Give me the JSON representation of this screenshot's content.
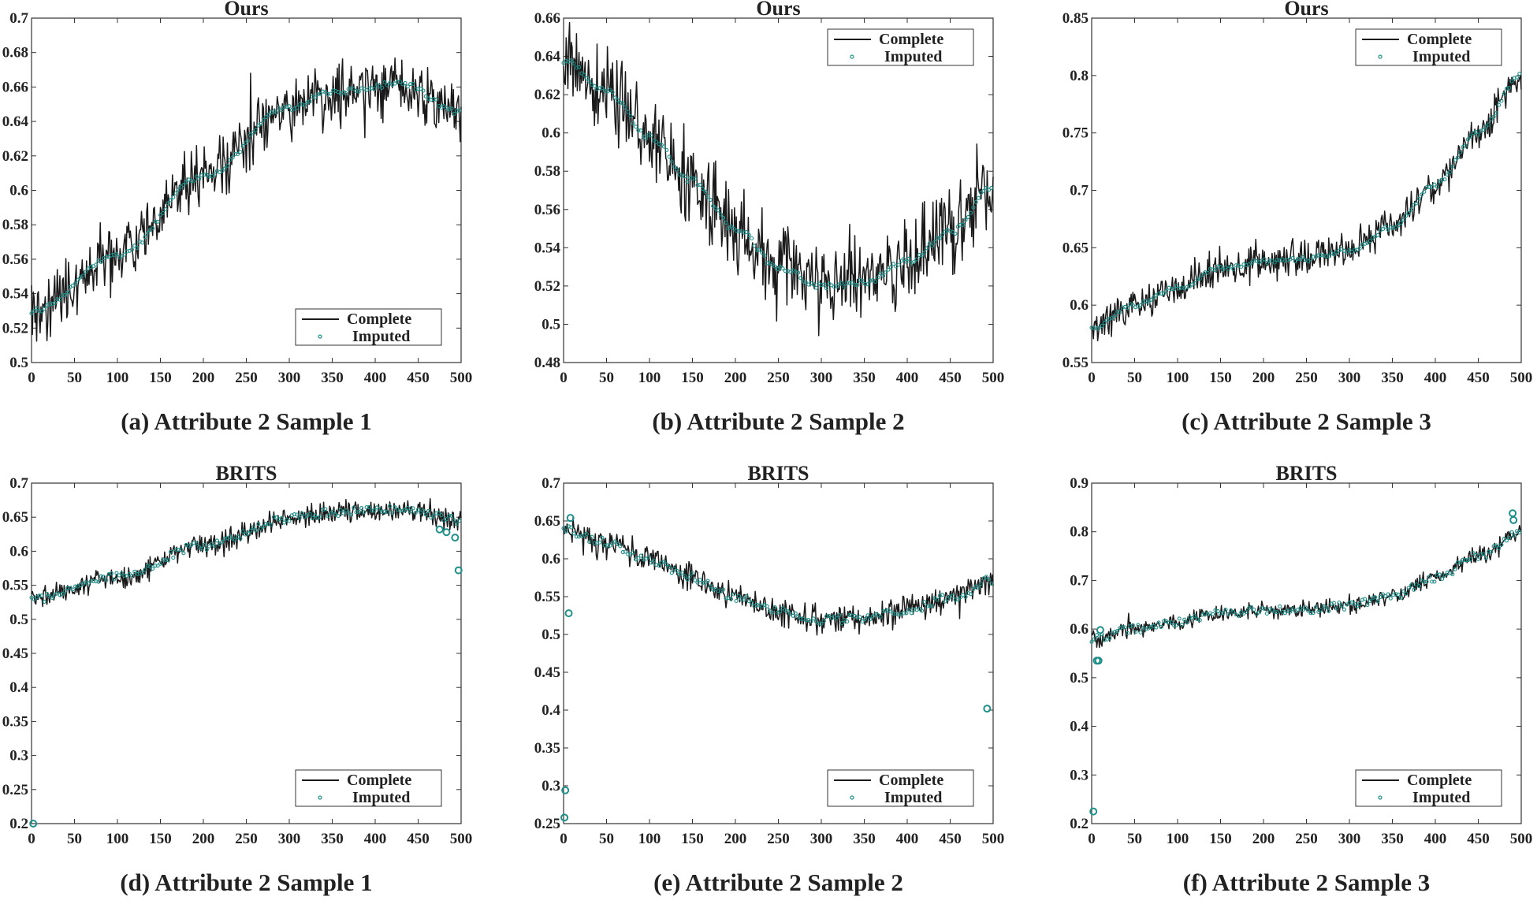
{
  "figure": {
    "series_names": [
      "Complete",
      "Imputed"
    ],
    "colors": {
      "complete": "#1a1a1a",
      "imputed": "#1f8f8a",
      "axes": "#333333"
    }
  },
  "chart_data": [
    {
      "id": "a",
      "type": "line",
      "title": "Ours",
      "caption": "(a) Attribute 2 Sample 1",
      "xlim": [
        0,
        500
      ],
      "ylim": [
        0.5,
        0.7
      ],
      "xticks": [
        0,
        50,
        100,
        150,
        200,
        250,
        300,
        350,
        400,
        450,
        500
      ],
      "yticks": [
        0.5,
        0.52,
        0.54,
        0.56,
        0.58,
        0.6,
        0.62,
        0.64,
        0.66,
        0.68,
        0.7
      ],
      "ytick_labels": [
        "0.5",
        "0.52",
        "0.54",
        "0.56",
        "0.58",
        "0.6",
        "0.62",
        "0.64",
        "0.66",
        "0.68",
        "0.7"
      ],
      "legend": {
        "position": "bottom-right",
        "labels": [
          "Complete",
          "Imputed"
        ]
      },
      "trend_knots": [
        [
          0,
          0.53
        ],
        [
          100,
          0.562
        ],
        [
          200,
          0.608
        ],
        [
          300,
          0.648
        ],
        [
          350,
          0.657
        ],
        [
          430,
          0.662
        ],
        [
          500,
          0.645
        ]
      ],
      "complete_noise": 0.013,
      "imputed_spread": 0.0015,
      "imputed_outliers": []
    },
    {
      "id": "b",
      "type": "line",
      "title": "Ours",
      "caption": "(b) Attribute 2 Sample 2",
      "xlim": [
        0,
        500
      ],
      "ylim": [
        0.48,
        0.66
      ],
      "xticks": [
        0,
        50,
        100,
        150,
        200,
        250,
        300,
        350,
        400,
        450,
        500
      ],
      "yticks": [
        0.48,
        0.5,
        0.52,
        0.54,
        0.56,
        0.58,
        0.6,
        0.62,
        0.64,
        0.66
      ],
      "ytick_labels": [
        "0.48",
        "0.5",
        "0.52",
        "0.54",
        "0.56",
        "0.58",
        "0.6",
        "0.62",
        "0.64",
        "0.66"
      ],
      "legend": {
        "position": "top-right",
        "labels": [
          "Complete",
          "Imputed"
        ]
      },
      "trend_knots": [
        [
          0,
          0.638
        ],
        [
          50,
          0.622
        ],
        [
          100,
          0.598
        ],
        [
          150,
          0.575
        ],
        [
          200,
          0.55
        ],
        [
          250,
          0.53
        ],
        [
          300,
          0.52
        ],
        [
          350,
          0.522
        ],
        [
          400,
          0.533
        ],
        [
          450,
          0.548
        ],
        [
          500,
          0.572
        ]
      ],
      "complete_noise": 0.015,
      "imputed_spread": 0.0015,
      "imputed_outliers": []
    },
    {
      "id": "c",
      "type": "line",
      "title": "Ours",
      "caption": "(c) Attribute 2 Sample 3",
      "xlim": [
        0,
        500
      ],
      "ylim": [
        0.55,
        0.85
      ],
      "xticks": [
        0,
        50,
        100,
        150,
        200,
        250,
        300,
        350,
        400,
        450,
        500
      ],
      "yticks": [
        0.55,
        0.6,
        0.65,
        0.7,
        0.75,
        0.8,
        0.85
      ],
      "ytick_labels": [
        "0.55",
        "0.6",
        "0.65",
        "0.7",
        "0.75",
        "0.8",
        "0.85"
      ],
      "legend": {
        "position": "top-right",
        "labels": [
          "Complete",
          "Imputed"
        ]
      },
      "trend_knots": [
        [
          0,
          0.58
        ],
        [
          50,
          0.6
        ],
        [
          100,
          0.615
        ],
        [
          150,
          0.632
        ],
        [
          200,
          0.638
        ],
        [
          250,
          0.64
        ],
        [
          300,
          0.648
        ],
        [
          350,
          0.668
        ],
        [
          400,
          0.705
        ],
        [
          450,
          0.75
        ],
        [
          500,
          0.8
        ]
      ],
      "complete_noise": 0.011,
      "imputed_spread": 0.002,
      "imputed_outliers": []
    },
    {
      "id": "d",
      "type": "line",
      "title": "BRITS",
      "caption": "(d) Attribute 2 Sample 1",
      "xlim": [
        0,
        500
      ],
      "ylim": [
        0.2,
        0.7
      ],
      "xticks": [
        0,
        50,
        100,
        150,
        200,
        250,
        300,
        350,
        400,
        450,
        500
      ],
      "yticks": [
        0.2,
        0.25,
        0.3,
        0.35,
        0.4,
        0.45,
        0.5,
        0.55,
        0.6,
        0.65,
        0.7
      ],
      "ytick_labels": [
        "0.2",
        "0.25",
        "0.3",
        "0.35",
        "0.4",
        "0.45",
        "0.5",
        "0.55",
        "0.6",
        "0.65",
        "0.7"
      ],
      "legend": {
        "position": "bottom-right",
        "labels": [
          "Complete",
          "Imputed"
        ]
      },
      "trend_knots": [
        [
          0,
          0.53
        ],
        [
          100,
          0.562
        ],
        [
          200,
          0.608
        ],
        [
          300,
          0.648
        ],
        [
          350,
          0.657
        ],
        [
          430,
          0.662
        ],
        [
          500,
          0.645
        ]
      ],
      "complete_noise": 0.011,
      "imputed_spread": 0.006,
      "imputed_outliers": [
        [
          2,
          0.2
        ],
        [
          475,
          0.632
        ],
        [
          483,
          0.628
        ],
        [
          493,
          0.62
        ],
        [
          497,
          0.572
        ]
      ]
    },
    {
      "id": "e",
      "type": "line",
      "title": "BRITS",
      "caption": "(e) Attribute 2 Sample 2",
      "xlim": [
        0,
        500
      ],
      "ylim": [
        0.25,
        0.7
      ],
      "xticks": [
        0,
        50,
        100,
        150,
        200,
        250,
        300,
        350,
        400,
        450,
        500
      ],
      "yticks": [
        0.25,
        0.3,
        0.35,
        0.4,
        0.45,
        0.5,
        0.55,
        0.6,
        0.65,
        0.7
      ],
      "ytick_labels": [
        "0.25",
        "0.3",
        "0.35",
        "0.4",
        "0.45",
        "0.5",
        "0.55",
        "0.6",
        "0.65",
        "0.7"
      ],
      "legend": {
        "position": "bottom-right",
        "labels": [
          "Complete",
          "Imputed"
        ]
      },
      "trend_knots": [
        [
          0,
          0.638
        ],
        [
          50,
          0.622
        ],
        [
          100,
          0.598
        ],
        [
          150,
          0.575
        ],
        [
          200,
          0.55
        ],
        [
          250,
          0.53
        ],
        [
          300,
          0.52
        ],
        [
          350,
          0.522
        ],
        [
          400,
          0.533
        ],
        [
          450,
          0.548
        ],
        [
          500,
          0.572
        ]
      ],
      "complete_noise": 0.013,
      "imputed_spread": 0.006,
      "imputed_outliers": [
        [
          1,
          0.258
        ],
        [
          2,
          0.294
        ],
        [
          6,
          0.528
        ],
        [
          8,
          0.654
        ],
        [
          493,
          0.402
        ]
      ]
    },
    {
      "id": "f",
      "type": "line",
      "title": "BRITS",
      "caption": "(f) Attribute 2 Sample 3",
      "xlim": [
        0,
        500
      ],
      "ylim": [
        0.2,
        0.9
      ],
      "xticks": [
        0,
        50,
        100,
        150,
        200,
        250,
        300,
        350,
        400,
        450,
        500
      ],
      "yticks": [
        0.2,
        0.3,
        0.4,
        0.5,
        0.6,
        0.7,
        0.8,
        0.9
      ],
      "ytick_labels": [
        "0.2",
        "0.3",
        "0.4",
        "0.5",
        "0.6",
        "0.7",
        "0.8",
        "0.9"
      ],
      "legend": {
        "position": "bottom-right",
        "labels": [
          "Complete",
          "Imputed"
        ]
      },
      "trend_knots": [
        [
          0,
          0.58
        ],
        [
          50,
          0.6
        ],
        [
          100,
          0.615
        ],
        [
          150,
          0.632
        ],
        [
          200,
          0.638
        ],
        [
          250,
          0.64
        ],
        [
          300,
          0.648
        ],
        [
          350,
          0.668
        ],
        [
          400,
          0.705
        ],
        [
          450,
          0.75
        ],
        [
          500,
          0.8
        ]
      ],
      "complete_noise": 0.012,
      "imputed_spread": 0.008,
      "imputed_outliers": [
        [
          2,
          0.225
        ],
        [
          6,
          0.535
        ],
        [
          8,
          0.535
        ],
        [
          10,
          0.598
        ],
        [
          490,
          0.838
        ],
        [
          491,
          0.824
        ]
      ]
    }
  ]
}
